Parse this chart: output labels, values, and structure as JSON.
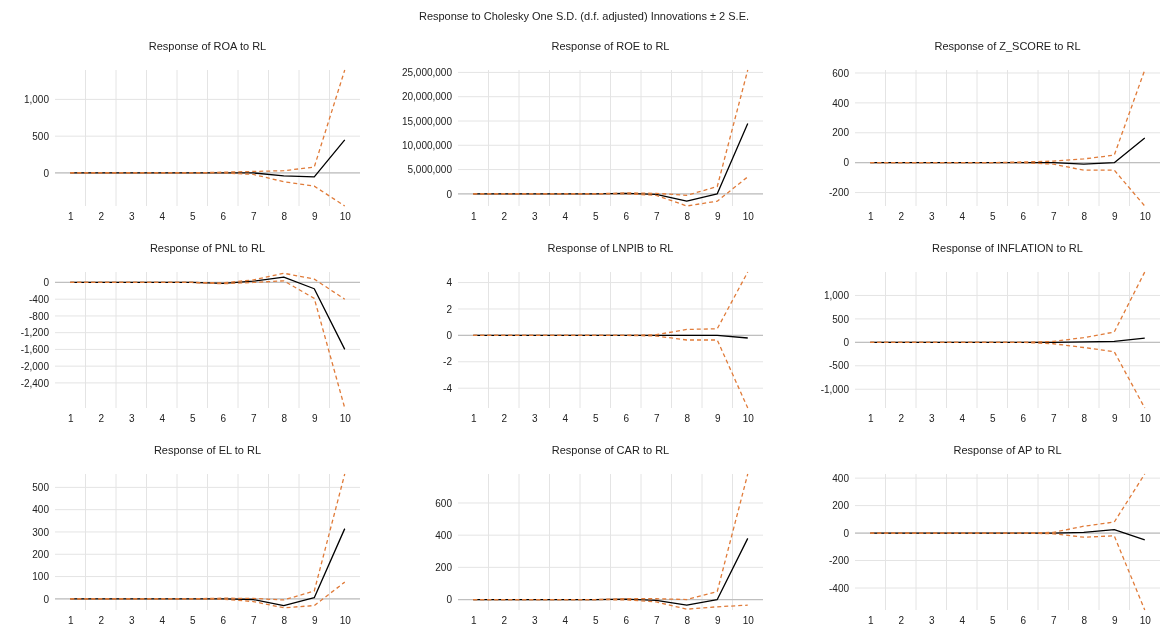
{
  "chart_data": [
    {
      "type": "line",
      "title": "Response of ROA to RL",
      "annotations": [
        "Response to Cholesky One S.D. (d.f. adjusted) Innovations ± 2 S.E."
      ],
      "categories": [
        "1",
        "2",
        "3",
        "4",
        "5",
        "6",
        "7",
        "8",
        "9",
        "10"
      ],
      "ylim": [
        -450,
        1400
      ],
      "yticks": [
        0,
        500,
        {
          "value": 1000,
          "label": "1,000"
        }
      ],
      "grid": true,
      "series": [
        {
          "color": "#000000",
          "line_style": "solid",
          "values": [
            0,
            0,
            0,
            0,
            0,
            0,
            0,
            -40,
            -55,
            450
          ]
        },
        {
          "color": "#e07b39",
          "line_style": "dashed",
          "values": [
            0,
            0,
            0,
            0,
            0,
            10,
            20,
            30,
            80,
            1400
          ]
        },
        {
          "color": "#e07b39",
          "line_style": "dashed",
          "values": [
            0,
            0,
            0,
            0,
            0,
            0,
            -20,
            -120,
            -180,
            -450
          ]
        }
      ]
    },
    {
      "type": "line",
      "title": "Response of ROE to RL",
      "categories": [
        "1",
        "2",
        "3",
        "4",
        "5",
        "6",
        "7",
        "8",
        "9",
        "10"
      ],
      "ylim": [
        -2500000,
        25500000
      ],
      "yticks": [
        0,
        {
          "value": 5000000,
          "label": "5,000,000"
        },
        {
          "value": 10000000,
          "label": "10,000,000"
        },
        {
          "value": 15000000,
          "label": "15,000,000"
        },
        {
          "value": 20000000,
          "label": "20,000,000"
        },
        {
          "value": 25000000,
          "label": "25,000,000"
        }
      ],
      "grid": true,
      "series": [
        {
          "color": "#000000",
          "line_style": "solid",
          "values": [
            0,
            0,
            0,
            0,
            0,
            100000,
            -100000,
            -1500000,
            0,
            14500000
          ]
        },
        {
          "color": "#e07b39",
          "line_style": "dashed",
          "values": [
            0,
            0,
            0,
            0,
            0,
            200000,
            100000,
            -300000,
            1500000,
            25500000
          ]
        },
        {
          "color": "#e07b39",
          "line_style": "dashed",
          "values": [
            0,
            0,
            0,
            0,
            0,
            0,
            -300000,
            -2500000,
            -1500000,
            3500000
          ]
        }
      ]
    },
    {
      "type": "line",
      "title": "Response of Z_SCORE to RL",
      "categories": [
        "1",
        "2",
        "3",
        "4",
        "5",
        "6",
        "7",
        "8",
        "9",
        "10"
      ],
      "ylim": [
        -290,
        620
      ],
      "yticks": [
        -200,
        0,
        200,
        400,
        600
      ],
      "grid": true,
      "series": [
        {
          "color": "#000000",
          "line_style": "solid",
          "values": [
            0,
            0,
            0,
            0,
            0,
            0,
            0,
            -10,
            0,
            165
          ]
        },
        {
          "color": "#e07b39",
          "line_style": "dashed",
          "values": [
            0,
            0,
            0,
            0,
            0,
            5,
            10,
            25,
            50,
            620
          ]
        },
        {
          "color": "#e07b39",
          "line_style": "dashed",
          "values": [
            0,
            0,
            0,
            0,
            0,
            0,
            -10,
            -50,
            -50,
            -290
          ]
        }
      ]
    },
    {
      "type": "line",
      "title": "Response of PNL to RL",
      "categories": [
        "1",
        "2",
        "3",
        "4",
        "5",
        "6",
        "7",
        "8",
        "9",
        "10"
      ],
      "ylim": [
        -3000,
        250
      ],
      "yticks": [
        {
          "value": -2400,
          "label": "-2,400"
        },
        {
          "value": -2000,
          "label": "-2,000"
        },
        {
          "value": -1600,
          "label": "-1,600"
        },
        {
          "value": -1200,
          "label": "-1,200"
        },
        -800,
        -400,
        0
      ],
      "grid": true,
      "series": [
        {
          "color": "#000000",
          "line_style": "solid",
          "values": [
            0,
            0,
            0,
            0,
            0,
            -20,
            30,
            130,
            -150,
            -1600
          ]
        },
        {
          "color": "#e07b39",
          "line_style": "dashed",
          "values": [
            0,
            0,
            0,
            0,
            0,
            -10,
            60,
            220,
            80,
            -400
          ]
        },
        {
          "color": "#e07b39",
          "line_style": "dashed",
          "values": [
            0,
            0,
            0,
            0,
            0,
            -30,
            0,
            40,
            -380,
            -3000
          ]
        }
      ]
    },
    {
      "type": "line",
      "title": "Response of LNPIB to RL",
      "categories": [
        "1",
        "2",
        "3",
        "4",
        "5",
        "6",
        "7",
        "8",
        "9",
        "10"
      ],
      "ylim": [
        -5.5,
        4.8
      ],
      "yticks": [
        -4,
        -2,
        0,
        2,
        4
      ],
      "grid": true,
      "series": [
        {
          "color": "#000000",
          "line_style": "solid",
          "values": [
            0,
            0,
            0,
            0,
            0,
            0,
            0,
            0,
            0,
            -0.2
          ]
        },
        {
          "color": "#e07b39",
          "line_style": "dashed",
          "values": [
            0,
            0,
            0,
            0,
            0,
            0,
            0.05,
            0.45,
            0.5,
            4.8
          ]
        },
        {
          "color": "#e07b39",
          "line_style": "dashed",
          "values": [
            0,
            0,
            0,
            0,
            0,
            0,
            -0.05,
            -0.35,
            -0.35,
            -5.5
          ]
        }
      ]
    },
    {
      "type": "line",
      "title": "Response of INFLATION to RL",
      "categories": [
        "1",
        "2",
        "3",
        "4",
        "5",
        "6",
        "7",
        "8",
        "9",
        "10"
      ],
      "ylim": [
        -1400,
        1500
      ],
      "yticks": [
        {
          "value": -1000,
          "label": "-1,000"
        },
        -500,
        0,
        500,
        {
          "value": 1000,
          "label": "1,000"
        }
      ],
      "grid": true,
      "series": [
        {
          "color": "#000000",
          "line_style": "solid",
          "values": [
            0,
            0,
            0,
            0,
            0,
            0,
            0,
            10,
            20,
            90
          ]
        },
        {
          "color": "#e07b39",
          "line_style": "dashed",
          "values": [
            0,
            0,
            0,
            0,
            0,
            0,
            20,
            100,
            220,
            1500
          ]
        },
        {
          "color": "#e07b39",
          "line_style": "dashed",
          "values": [
            0,
            0,
            0,
            0,
            0,
            0,
            -30,
            -110,
            -200,
            -1400
          ]
        }
      ]
    },
    {
      "type": "line",
      "title": "Response of EL to RL",
      "categories": [
        "1",
        "2",
        "3",
        "4",
        "5",
        "6",
        "7",
        "8",
        "9",
        "10"
      ],
      "ylim": [
        -50,
        560
      ],
      "yticks": [
        0,
        100,
        200,
        300,
        400,
        500
      ],
      "grid": true,
      "series": [
        {
          "color": "#000000",
          "line_style": "solid",
          "values": [
            0,
            0,
            0,
            0,
            0,
            0,
            -3,
            -30,
            5,
            315
          ]
        },
        {
          "color": "#e07b39",
          "line_style": "dashed",
          "values": [
            0,
            0,
            0,
            0,
            0,
            3,
            2,
            -5,
            35,
            560
          ]
        },
        {
          "color": "#e07b39",
          "line_style": "dashed",
          "values": [
            0,
            0,
            0,
            0,
            0,
            -2,
            -12,
            -40,
            -30,
            75
          ]
        }
      ]
    },
    {
      "type": "line",
      "title": "Response of CAR to RL",
      "categories": [
        "1",
        "2",
        "3",
        "4",
        "5",
        "6",
        "7",
        "8",
        "9",
        "10"
      ],
      "ylim": [
        -65,
        780
      ],
      "yticks": [
        0,
        200,
        400,
        600
      ],
      "grid": true,
      "series": [
        {
          "color": "#000000",
          "line_style": "solid",
          "values": [
            0,
            0,
            0,
            0,
            0,
            2,
            -5,
            -35,
            0,
            380
          ]
        },
        {
          "color": "#e07b39",
          "line_style": "dashed",
          "values": [
            0,
            0,
            0,
            0,
            0,
            5,
            5,
            0,
            50,
            780
          ]
        },
        {
          "color": "#e07b39",
          "line_style": "dashed",
          "values": [
            0,
            0,
            0,
            0,
            0,
            -2,
            -15,
            -60,
            -45,
            -35
          ]
        }
      ]
    },
    {
      "type": "line",
      "title": "Response of AP to RL",
      "categories": [
        "1",
        "2",
        "3",
        "4",
        "5",
        "6",
        "7",
        "8",
        "9",
        "10"
      ],
      "ylim": [
        -560,
        430
      ],
      "yticks": [
        -400,
        -200,
        0,
        200,
        400
      ],
      "grid": true,
      "series": [
        {
          "color": "#000000",
          "line_style": "solid",
          "values": [
            0,
            0,
            0,
            0,
            0,
            0,
            0,
            5,
            25,
            -50
          ]
        },
        {
          "color": "#e07b39",
          "line_style": "dashed",
          "values": [
            0,
            0,
            0,
            0,
            0,
            0,
            5,
            50,
            80,
            430
          ]
        },
        {
          "color": "#e07b39",
          "line_style": "dashed",
          "values": [
            0,
            0,
            0,
            0,
            0,
            0,
            -5,
            -30,
            -20,
            -560
          ]
        }
      ]
    }
  ]
}
